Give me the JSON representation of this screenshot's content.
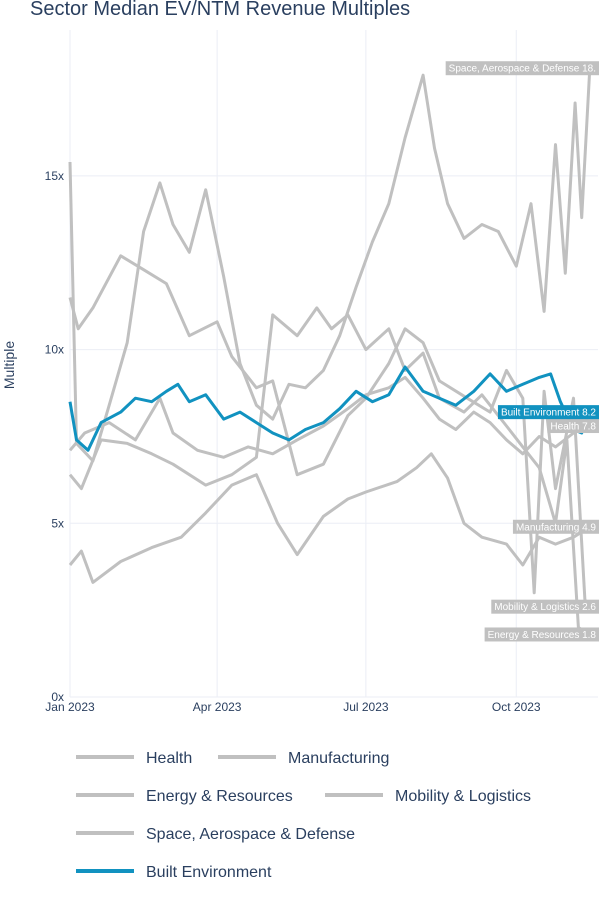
{
  "chart_data": {
    "type": "line",
    "title": "Sector Median EV/NTM Revenue Multiples",
    "xlabel": "",
    "ylabel": "Multiple",
    "x_ticks": [
      "Jan 2023",
      "Apr 2023",
      "Jul 2023",
      "Oct 2023"
    ],
    "y_ticks": [
      "0x",
      "5x",
      "10x",
      "15x"
    ],
    "ylim": [
      0,
      19.2
    ],
    "xlim": [
      "2023-01-01",
      "2023-11-20"
    ],
    "grid": true,
    "legend_position": "bottom",
    "colors": {
      "highlight": "#1192c0",
      "muted": "#c0c0c0",
      "grid": "#ebeef5",
      "text": "#2a3f5f"
    },
    "series": [
      {
        "name": "Health",
        "end_label": "Health 7.8",
        "points": [
          [
            "2023-01-01",
            7.1
          ],
          [
            "2023-01-10",
            7.6
          ],
          [
            "2023-01-25",
            7.9
          ],
          [
            "2023-02-10",
            7.4
          ],
          [
            "2023-02-25",
            8.6
          ],
          [
            "2023-03-05",
            7.6
          ],
          [
            "2023-03-20",
            7.1
          ],
          [
            "2023-04-05",
            6.9
          ],
          [
            "2023-04-20",
            7.2
          ],
          [
            "2023-05-05",
            7.0
          ],
          [
            "2023-05-20",
            7.4
          ],
          [
            "2023-06-05",
            7.8
          ],
          [
            "2023-06-20",
            8.3
          ],
          [
            "2023-07-01",
            8.7
          ],
          [
            "2023-07-15",
            8.9
          ],
          [
            "2023-07-25",
            9.2
          ],
          [
            "2023-08-05",
            8.6
          ],
          [
            "2023-08-15",
            8.0
          ],
          [
            "2023-08-25",
            7.7
          ],
          [
            "2023-09-05",
            8.2
          ],
          [
            "2023-09-15",
            7.9
          ],
          [
            "2023-09-25",
            7.4
          ],
          [
            "2023-10-05",
            7.0
          ],
          [
            "2023-10-15",
            7.5
          ],
          [
            "2023-10-25",
            7.2
          ],
          [
            "2023-11-05",
            7.6
          ],
          [
            "2023-11-15",
            7.8
          ]
        ]
      },
      {
        "name": "Manufacturing",
        "end_label": "Manufacturing 4.9",
        "points": [
          [
            "2023-01-01",
            3.8
          ],
          [
            "2023-01-08",
            4.2
          ],
          [
            "2023-01-15",
            3.3
          ],
          [
            "2023-02-01",
            3.9
          ],
          [
            "2023-02-20",
            4.3
          ],
          [
            "2023-03-10",
            4.6
          ],
          [
            "2023-03-25",
            5.3
          ],
          [
            "2023-04-10",
            6.1
          ],
          [
            "2023-04-25",
            6.4
          ],
          [
            "2023-05-08",
            5.0
          ],
          [
            "2023-05-20",
            4.1
          ],
          [
            "2023-06-05",
            5.2
          ],
          [
            "2023-06-20",
            5.7
          ],
          [
            "2023-07-01",
            5.9
          ],
          [
            "2023-07-20",
            6.2
          ],
          [
            "2023-08-01",
            6.6
          ],
          [
            "2023-08-10",
            7.0
          ],
          [
            "2023-08-20",
            6.3
          ],
          [
            "2023-08-30",
            5.0
          ],
          [
            "2023-09-10",
            4.6
          ],
          [
            "2023-09-25",
            4.4
          ],
          [
            "2023-10-05",
            3.8
          ],
          [
            "2023-10-15",
            4.6
          ],
          [
            "2023-10-25",
            4.4
          ],
          [
            "2023-11-05",
            4.6
          ],
          [
            "2023-11-15",
            4.9
          ]
        ]
      },
      {
        "name": "Energy & Resources",
        "end_label": "Energy & Resources 1.8",
        "points": [
          [
            "2023-01-01",
            6.4
          ],
          [
            "2023-01-08",
            6.0
          ],
          [
            "2023-01-20",
            7.4
          ],
          [
            "2023-02-05",
            7.3
          ],
          [
            "2023-02-20",
            7.0
          ],
          [
            "2023-03-05",
            6.7
          ],
          [
            "2023-03-25",
            6.1
          ],
          [
            "2023-04-10",
            6.4
          ],
          [
            "2023-04-25",
            6.9
          ],
          [
            "2023-05-05",
            11.0
          ],
          [
            "2023-05-20",
            10.4
          ],
          [
            "2023-06-01",
            11.2
          ],
          [
            "2023-06-10",
            10.6
          ],
          [
            "2023-06-20",
            11.0
          ],
          [
            "2023-07-01",
            10.0
          ],
          [
            "2023-07-15",
            10.6
          ],
          [
            "2023-07-25",
            9.4
          ],
          [
            "2023-08-05",
            9.9
          ],
          [
            "2023-08-15",
            8.6
          ],
          [
            "2023-08-30",
            8.2
          ],
          [
            "2023-09-10",
            8.7
          ],
          [
            "2023-09-25",
            7.8
          ],
          [
            "2023-10-05",
            7.2
          ],
          [
            "2023-10-15",
            6.6
          ],
          [
            "2023-10-25",
            5.0
          ],
          [
            "2023-11-01",
            7.4
          ],
          [
            "2023-11-08",
            2.0
          ],
          [
            "2023-11-15",
            1.8
          ]
        ]
      },
      {
        "name": "Mobility & Logistics",
        "end_label": "Mobility & Logistics 2.6",
        "points": [
          [
            "2023-01-01",
            11.5
          ],
          [
            "2023-01-06",
            10.6
          ],
          [
            "2023-01-15",
            11.2
          ],
          [
            "2023-02-01",
            12.7
          ],
          [
            "2023-02-15",
            12.3
          ],
          [
            "2023-03-01",
            11.9
          ],
          [
            "2023-03-15",
            10.4
          ],
          [
            "2023-04-01",
            10.8
          ],
          [
            "2023-04-10",
            9.8
          ],
          [
            "2023-04-25",
            8.9
          ],
          [
            "2023-05-05",
            9.1
          ],
          [
            "2023-05-20",
            6.4
          ],
          [
            "2023-06-05",
            6.7
          ],
          [
            "2023-06-20",
            8.1
          ],
          [
            "2023-07-01",
            8.6
          ],
          [
            "2023-07-15",
            9.6
          ],
          [
            "2023-07-25",
            10.6
          ],
          [
            "2023-08-05",
            10.2
          ],
          [
            "2023-08-15",
            9.1
          ],
          [
            "2023-09-01",
            8.6
          ],
          [
            "2023-09-15",
            8.2
          ],
          [
            "2023-09-25",
            9.4
          ],
          [
            "2023-10-05",
            8.6
          ],
          [
            "2023-10-12",
            3.0
          ],
          [
            "2023-10-18",
            8.8
          ],
          [
            "2023-10-25",
            6.0
          ],
          [
            "2023-11-05",
            8.6
          ],
          [
            "2023-11-12",
            2.8
          ],
          [
            "2023-11-15",
            2.6
          ]
        ]
      },
      {
        "name": "Space, Aerospace & Defense",
        "end_label": "Space, Aerospace & Defense 18.",
        "points": [
          [
            "2023-01-01",
            15.4
          ],
          [
            "2023-01-05",
            7.3
          ],
          [
            "2023-01-15",
            6.8
          ],
          [
            "2023-01-25",
            8.4
          ],
          [
            "2023-02-05",
            10.2
          ],
          [
            "2023-02-15",
            13.4
          ],
          [
            "2023-02-25",
            14.8
          ],
          [
            "2023-03-05",
            13.6
          ],
          [
            "2023-03-15",
            12.8
          ],
          [
            "2023-03-25",
            14.6
          ],
          [
            "2023-04-05",
            12.1
          ],
          [
            "2023-04-15",
            9.6
          ],
          [
            "2023-04-25",
            8.4
          ],
          [
            "2023-05-05",
            8.0
          ],
          [
            "2023-05-15",
            9.0
          ],
          [
            "2023-05-25",
            8.9
          ],
          [
            "2023-06-05",
            9.4
          ],
          [
            "2023-06-15",
            10.4
          ],
          [
            "2023-06-25",
            11.8
          ],
          [
            "2023-07-05",
            13.1
          ],
          [
            "2023-07-15",
            14.2
          ],
          [
            "2023-07-25",
            16.1
          ],
          [
            "2023-08-05",
            17.9
          ],
          [
            "2023-08-12",
            15.8
          ],
          [
            "2023-08-20",
            14.2
          ],
          [
            "2023-08-30",
            13.2
          ],
          [
            "2023-09-10",
            13.6
          ],
          [
            "2023-09-20",
            13.4
          ],
          [
            "2023-10-01",
            12.4
          ],
          [
            "2023-10-10",
            14.2
          ],
          [
            "2023-10-18",
            11.1
          ],
          [
            "2023-10-25",
            15.9
          ],
          [
            "2023-10-31",
            12.2
          ],
          [
            "2023-11-06",
            17.1
          ],
          [
            "2023-11-10",
            13.8
          ],
          [
            "2023-11-15",
            18.1
          ]
        ]
      },
      {
        "name": "Built Environment",
        "end_label": "Built Environment 8.2",
        "highlight": true,
        "points": [
          [
            "2023-01-01",
            8.5
          ],
          [
            "2023-01-05",
            7.4
          ],
          [
            "2023-01-12",
            7.1
          ],
          [
            "2023-01-20",
            7.9
          ],
          [
            "2023-02-01",
            8.2
          ],
          [
            "2023-02-10",
            8.6
          ],
          [
            "2023-02-20",
            8.5
          ],
          [
            "2023-03-01",
            8.8
          ],
          [
            "2023-03-08",
            9.0
          ],
          [
            "2023-03-15",
            8.5
          ],
          [
            "2023-03-25",
            8.7
          ],
          [
            "2023-04-05",
            8.0
          ],
          [
            "2023-04-15",
            8.2
          ],
          [
            "2023-04-25",
            7.9
          ],
          [
            "2023-05-05",
            7.6
          ],
          [
            "2023-05-15",
            7.4
          ],
          [
            "2023-05-25",
            7.7
          ],
          [
            "2023-06-05",
            7.9
          ],
          [
            "2023-06-15",
            8.3
          ],
          [
            "2023-06-25",
            8.8
          ],
          [
            "2023-07-05",
            8.5
          ],
          [
            "2023-07-15",
            8.7
          ],
          [
            "2023-07-25",
            9.5
          ],
          [
            "2023-08-05",
            8.8
          ],
          [
            "2023-08-15",
            8.6
          ],
          [
            "2023-08-25",
            8.4
          ],
          [
            "2023-09-05",
            8.8
          ],
          [
            "2023-09-15",
            9.3
          ],
          [
            "2023-09-25",
            8.8
          ],
          [
            "2023-10-05",
            9.0
          ],
          [
            "2023-10-15",
            9.2
          ],
          [
            "2023-10-22",
            9.3
          ],
          [
            "2023-10-28",
            8.5
          ],
          [
            "2023-11-05",
            7.7
          ],
          [
            "2023-11-10",
            7.6
          ],
          [
            "2023-11-15",
            8.2
          ]
        ]
      }
    ]
  }
}
